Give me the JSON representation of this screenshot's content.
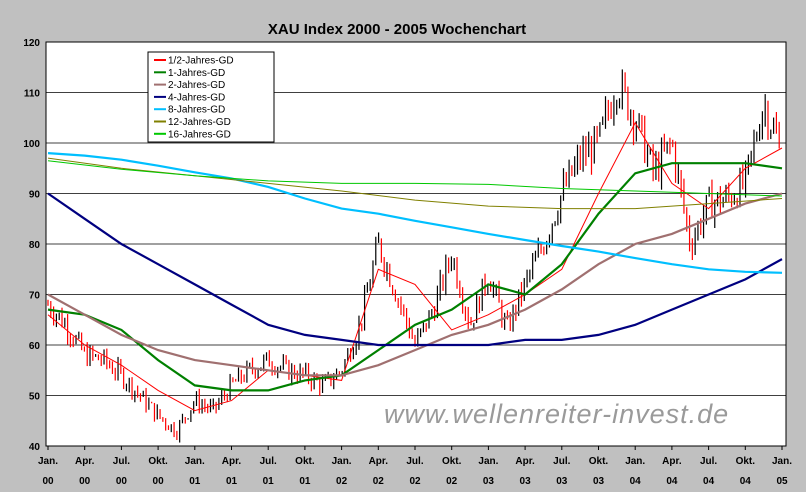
{
  "chart_data": {
    "type": "line",
    "title": "XAU Index 2000 - 2005 Wochenchart",
    "watermark": "www.wellenreiter-invest.de",
    "ylim": [
      40,
      120
    ],
    "y_ticks": [
      40,
      50,
      60,
      70,
      80,
      90,
      100,
      110,
      120
    ],
    "x_ticks": [
      {
        "month": "Jan.",
        "year": "00"
      },
      {
        "month": "Apr.",
        "year": "00"
      },
      {
        "month": "Jul.",
        "year": "00"
      },
      {
        "month": "Okt.",
        "year": "00"
      },
      {
        "month": "Jan.",
        "year": "01"
      },
      {
        "month": "Apr.",
        "year": "01"
      },
      {
        "month": "Jul.",
        "year": "01"
      },
      {
        "month": "Okt.",
        "year": "01"
      },
      {
        "month": "Jan.",
        "year": "02"
      },
      {
        "month": "Apr.",
        "year": "02"
      },
      {
        "month": "Jul.",
        "year": "02"
      },
      {
        "month": "Okt.",
        "year": "02"
      },
      {
        "month": "Jan.",
        "year": "03"
      },
      {
        "month": "Apr.",
        "year": "03"
      },
      {
        "month": "Jul.",
        "year": "03"
      },
      {
        "month": "Okt.",
        "year": "03"
      },
      {
        "month": "Jan.",
        "year": "04"
      },
      {
        "month": "Apr.",
        "year": "04"
      },
      {
        "month": "Jul.",
        "year": "04"
      },
      {
        "month": "Okt.",
        "year": "04"
      },
      {
        "month": "Jan.",
        "year": "05"
      }
    ],
    "grid": true,
    "legend_position": "top-left",
    "price_series": {
      "name": "XAU Index",
      "x_quarter": [
        0,
        0.5,
        1,
        1.5,
        2,
        2.5,
        3,
        3.5,
        4,
        4.5,
        5,
        5.5,
        6,
        6.5,
        7,
        7.5,
        8,
        8.5,
        9,
        9.5,
        10,
        10.5,
        11,
        11.5,
        12,
        12.5,
        13,
        13.5,
        14,
        14.5,
        15,
        15.5,
        16,
        16.5,
        17,
        17.5,
        18,
        18.5,
        19,
        19.5,
        20
      ],
      "values": [
        68,
        64,
        58,
        57,
        54,
        50,
        46,
        43,
        49,
        47,
        52,
        55,
        57,
        55,
        54,
        52,
        55,
        64,
        80,
        70,
        60,
        67,
        78,
        64,
        74,
        63,
        72,
        80,
        90,
        97,
        100,
        112,
        105,
        94,
        100,
        80,
        88,
        89,
        92,
        108,
        98
      ],
      "up_color": "#000000",
      "down_color": "#ff0000"
    },
    "series": [
      {
        "name": "1/2-Jahres-GD",
        "color": "#ff0000",
        "x_quarter": [
          0,
          1,
          2,
          3,
          4,
          5,
          6,
          7,
          8,
          9,
          10,
          11,
          12,
          13,
          14,
          15,
          16,
          17,
          18,
          19,
          20
        ],
        "values": [
          66,
          60,
          56,
          51,
          47,
          49,
          55,
          54,
          53,
          75,
          72,
          63,
          66,
          70,
          75,
          90,
          104,
          92,
          87,
          95,
          99
        ]
      },
      {
        "name": "1-Jahres-GD",
        "color": "#008000",
        "x_quarter": [
          0,
          1,
          2,
          3,
          4,
          5,
          6,
          7,
          8,
          9,
          10,
          11,
          12,
          13,
          14,
          15,
          16,
          17,
          18,
          19,
          20
        ],
        "values": [
          67,
          66,
          63,
          57,
          52,
          51,
          51,
          53,
          54,
          59,
          64,
          67,
          72,
          70,
          76,
          86,
          94,
          96,
          96,
          96,
          95
        ]
      },
      {
        "name": "2-Jahres-GD",
        "color": "#a07070",
        "x_quarter": [
          0,
          1,
          2,
          3,
          4,
          5,
          6,
          7,
          8,
          9,
          10,
          11,
          12,
          13,
          14,
          15,
          16,
          17,
          18,
          19,
          20
        ],
        "values": [
          70,
          66,
          62,
          59,
          57,
          56,
          55,
          54,
          54,
          56,
          59,
          62,
          64,
          67,
          71,
          76,
          80,
          82,
          85,
          88,
          90
        ]
      },
      {
        "name": "4-Jahres-GD",
        "color": "#000080",
        "x_quarter": [
          0,
          1,
          2,
          3,
          4,
          5,
          6,
          7,
          8,
          9,
          10,
          11,
          12,
          13,
          14,
          15,
          16,
          17,
          18,
          19,
          20
        ],
        "values": [
          90,
          85,
          80,
          76,
          72,
          68,
          64,
          62,
          61,
          60,
          60,
          60,
          60,
          61,
          61,
          62,
          64,
          67,
          70,
          73,
          77
        ]
      },
      {
        "name": "8-Jahres-GD",
        "color": "#00bfff",
        "x_quarter": [
          0,
          1,
          2,
          3,
          4,
          5,
          6,
          7,
          8,
          9,
          10,
          11,
          12,
          13,
          14,
          15,
          16,
          17,
          18,
          19,
          20
        ],
        "values": [
          98,
          97.5,
          96.7,
          95.5,
          94.2,
          93,
          91.3,
          89,
          87,
          86,
          84.6,
          83.3,
          82,
          80.8,
          79.6,
          78.5,
          77.2,
          76,
          75,
          74.5,
          74.3
        ]
      },
      {
        "name": "12-Jahres-GD",
        "color": "#808000",
        "x_quarter": [
          0,
          2,
          4,
          6,
          8,
          10,
          12,
          14,
          16,
          18,
          20
        ],
        "values": [
          97,
          95,
          93.5,
          92,
          90.5,
          88.7,
          87.5,
          87,
          87,
          88,
          89
        ]
      },
      {
        "name": "16-Jahres-GD",
        "color": "#00c800",
        "x_quarter": [
          0,
          2,
          4,
          6,
          8,
          10,
          12,
          14,
          16,
          18,
          20
        ],
        "values": [
          96.5,
          94.8,
          93.5,
          92.5,
          92,
          92,
          91.8,
          91,
          90.5,
          90,
          89.5
        ]
      }
    ]
  }
}
